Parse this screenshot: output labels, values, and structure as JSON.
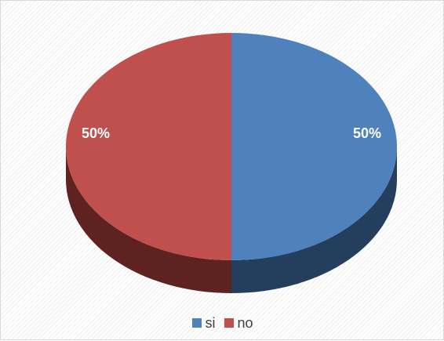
{
  "chart_data": {
    "type": "pie",
    "title": "",
    "series": [
      {
        "name": "si",
        "value": 50,
        "label": "50%",
        "color": "#4F81BD",
        "side_color": "#243E5E"
      },
      {
        "name": "no",
        "value": 50,
        "label": "50%",
        "color": "#C0504D",
        "side_color": "#5E2220"
      }
    ],
    "legend": {
      "placement": "bottom",
      "entries": [
        "si",
        "no"
      ]
    },
    "data_label_color": "#FFFFFF",
    "style": "3d-pie",
    "background": "diagonal-hatch"
  }
}
